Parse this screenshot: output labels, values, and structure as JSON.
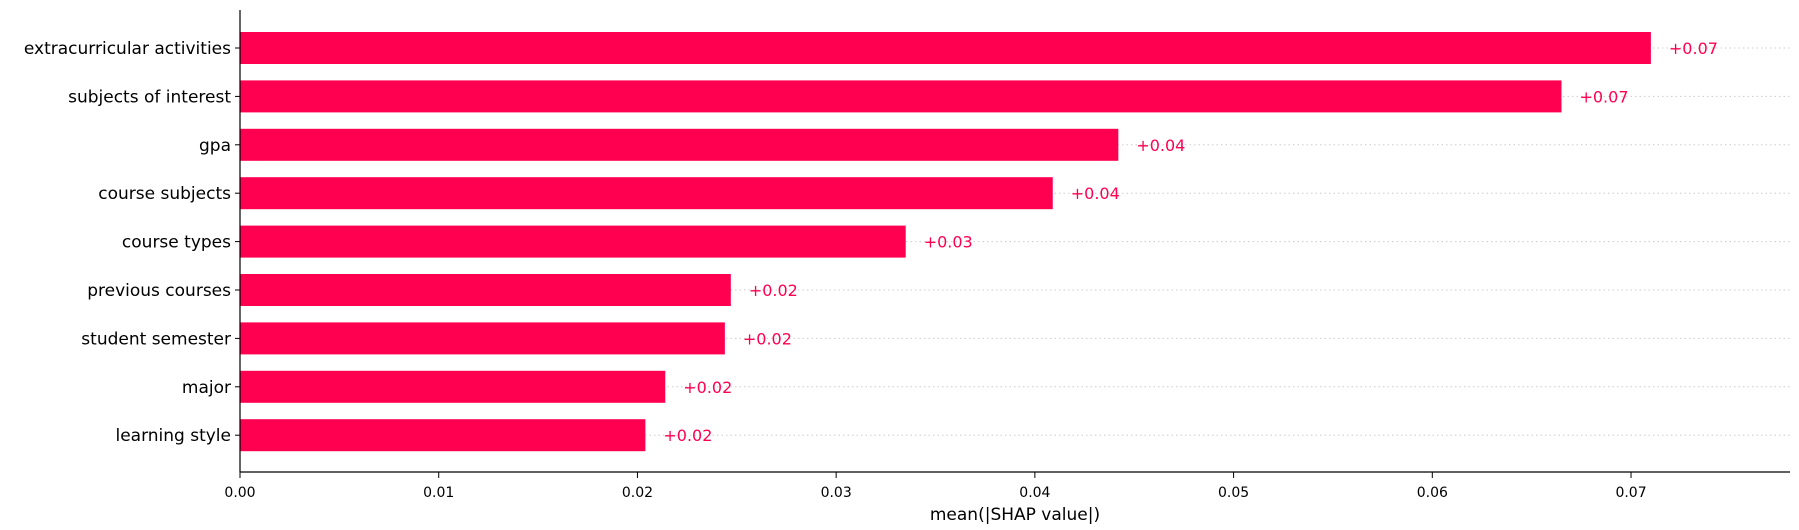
{
  "chart_data": {
    "type": "bar",
    "orientation": "horizontal",
    "categories": [
      "extracurricular activities",
      "subjects of interest",
      "gpa",
      "course subjects",
      "course types",
      "previous courses",
      "student semester",
      "major",
      "learning style"
    ],
    "values": [
      0.071,
      0.0665,
      0.0442,
      0.0409,
      0.0335,
      0.0247,
      0.0244,
      0.0214,
      0.0204
    ],
    "value_labels": [
      "+0.07",
      "+0.07",
      "+0.04",
      "+0.04",
      "+0.03",
      "+0.02",
      "+0.02",
      "+0.02",
      "+0.02"
    ],
    "xlabel": "mean(|SHAP value|)",
    "ylabel": "",
    "title": "",
    "xlim": [
      0,
      0.078
    ],
    "xticks": [
      0.0,
      0.01,
      0.02,
      0.03,
      0.04,
      0.05,
      0.06,
      0.07
    ],
    "xtick_labels": [
      "0.00",
      "0.01",
      "0.02",
      "0.03",
      "0.04",
      "0.05",
      "0.06",
      "0.07"
    ],
    "grid": "dotted horizontal lines behind bars",
    "bar_color": "#ff0051",
    "label_color": "#ff0051"
  }
}
